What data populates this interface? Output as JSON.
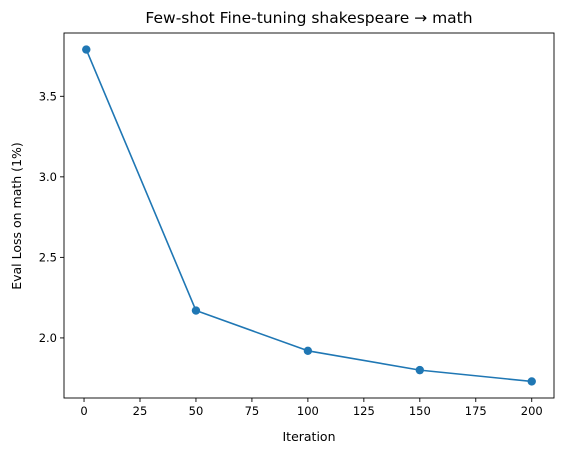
{
  "chart_data": {
    "type": "line",
    "title": "Few-shot Fine-tuning shakespeare → math",
    "xlabel": "Iteration",
    "ylabel": "Eval Loss on math (1%)",
    "x": [
      1,
      50,
      100,
      150,
      200
    ],
    "series": [
      {
        "values": [
          3.79,
          2.17,
          1.92,
          1.8,
          1.73
        ]
      }
    ],
    "xlim": [
      -8.95,
      209.95
    ],
    "ylim": [
      1.627,
      3.893
    ],
    "xticks": [
      0,
      25,
      50,
      75,
      100,
      125,
      150,
      175,
      200
    ],
    "xtick_labels": [
      "0",
      "25",
      "50",
      "75",
      "100",
      "125",
      "150",
      "175",
      "200"
    ],
    "yticks": [
      2.0,
      2.5,
      3.0,
      3.5
    ],
    "ytick_labels": [
      "2.0",
      "2.5",
      "3.0",
      "3.5"
    ],
    "grid": false,
    "marker": "circle",
    "line_color": "#1f77b4"
  }
}
